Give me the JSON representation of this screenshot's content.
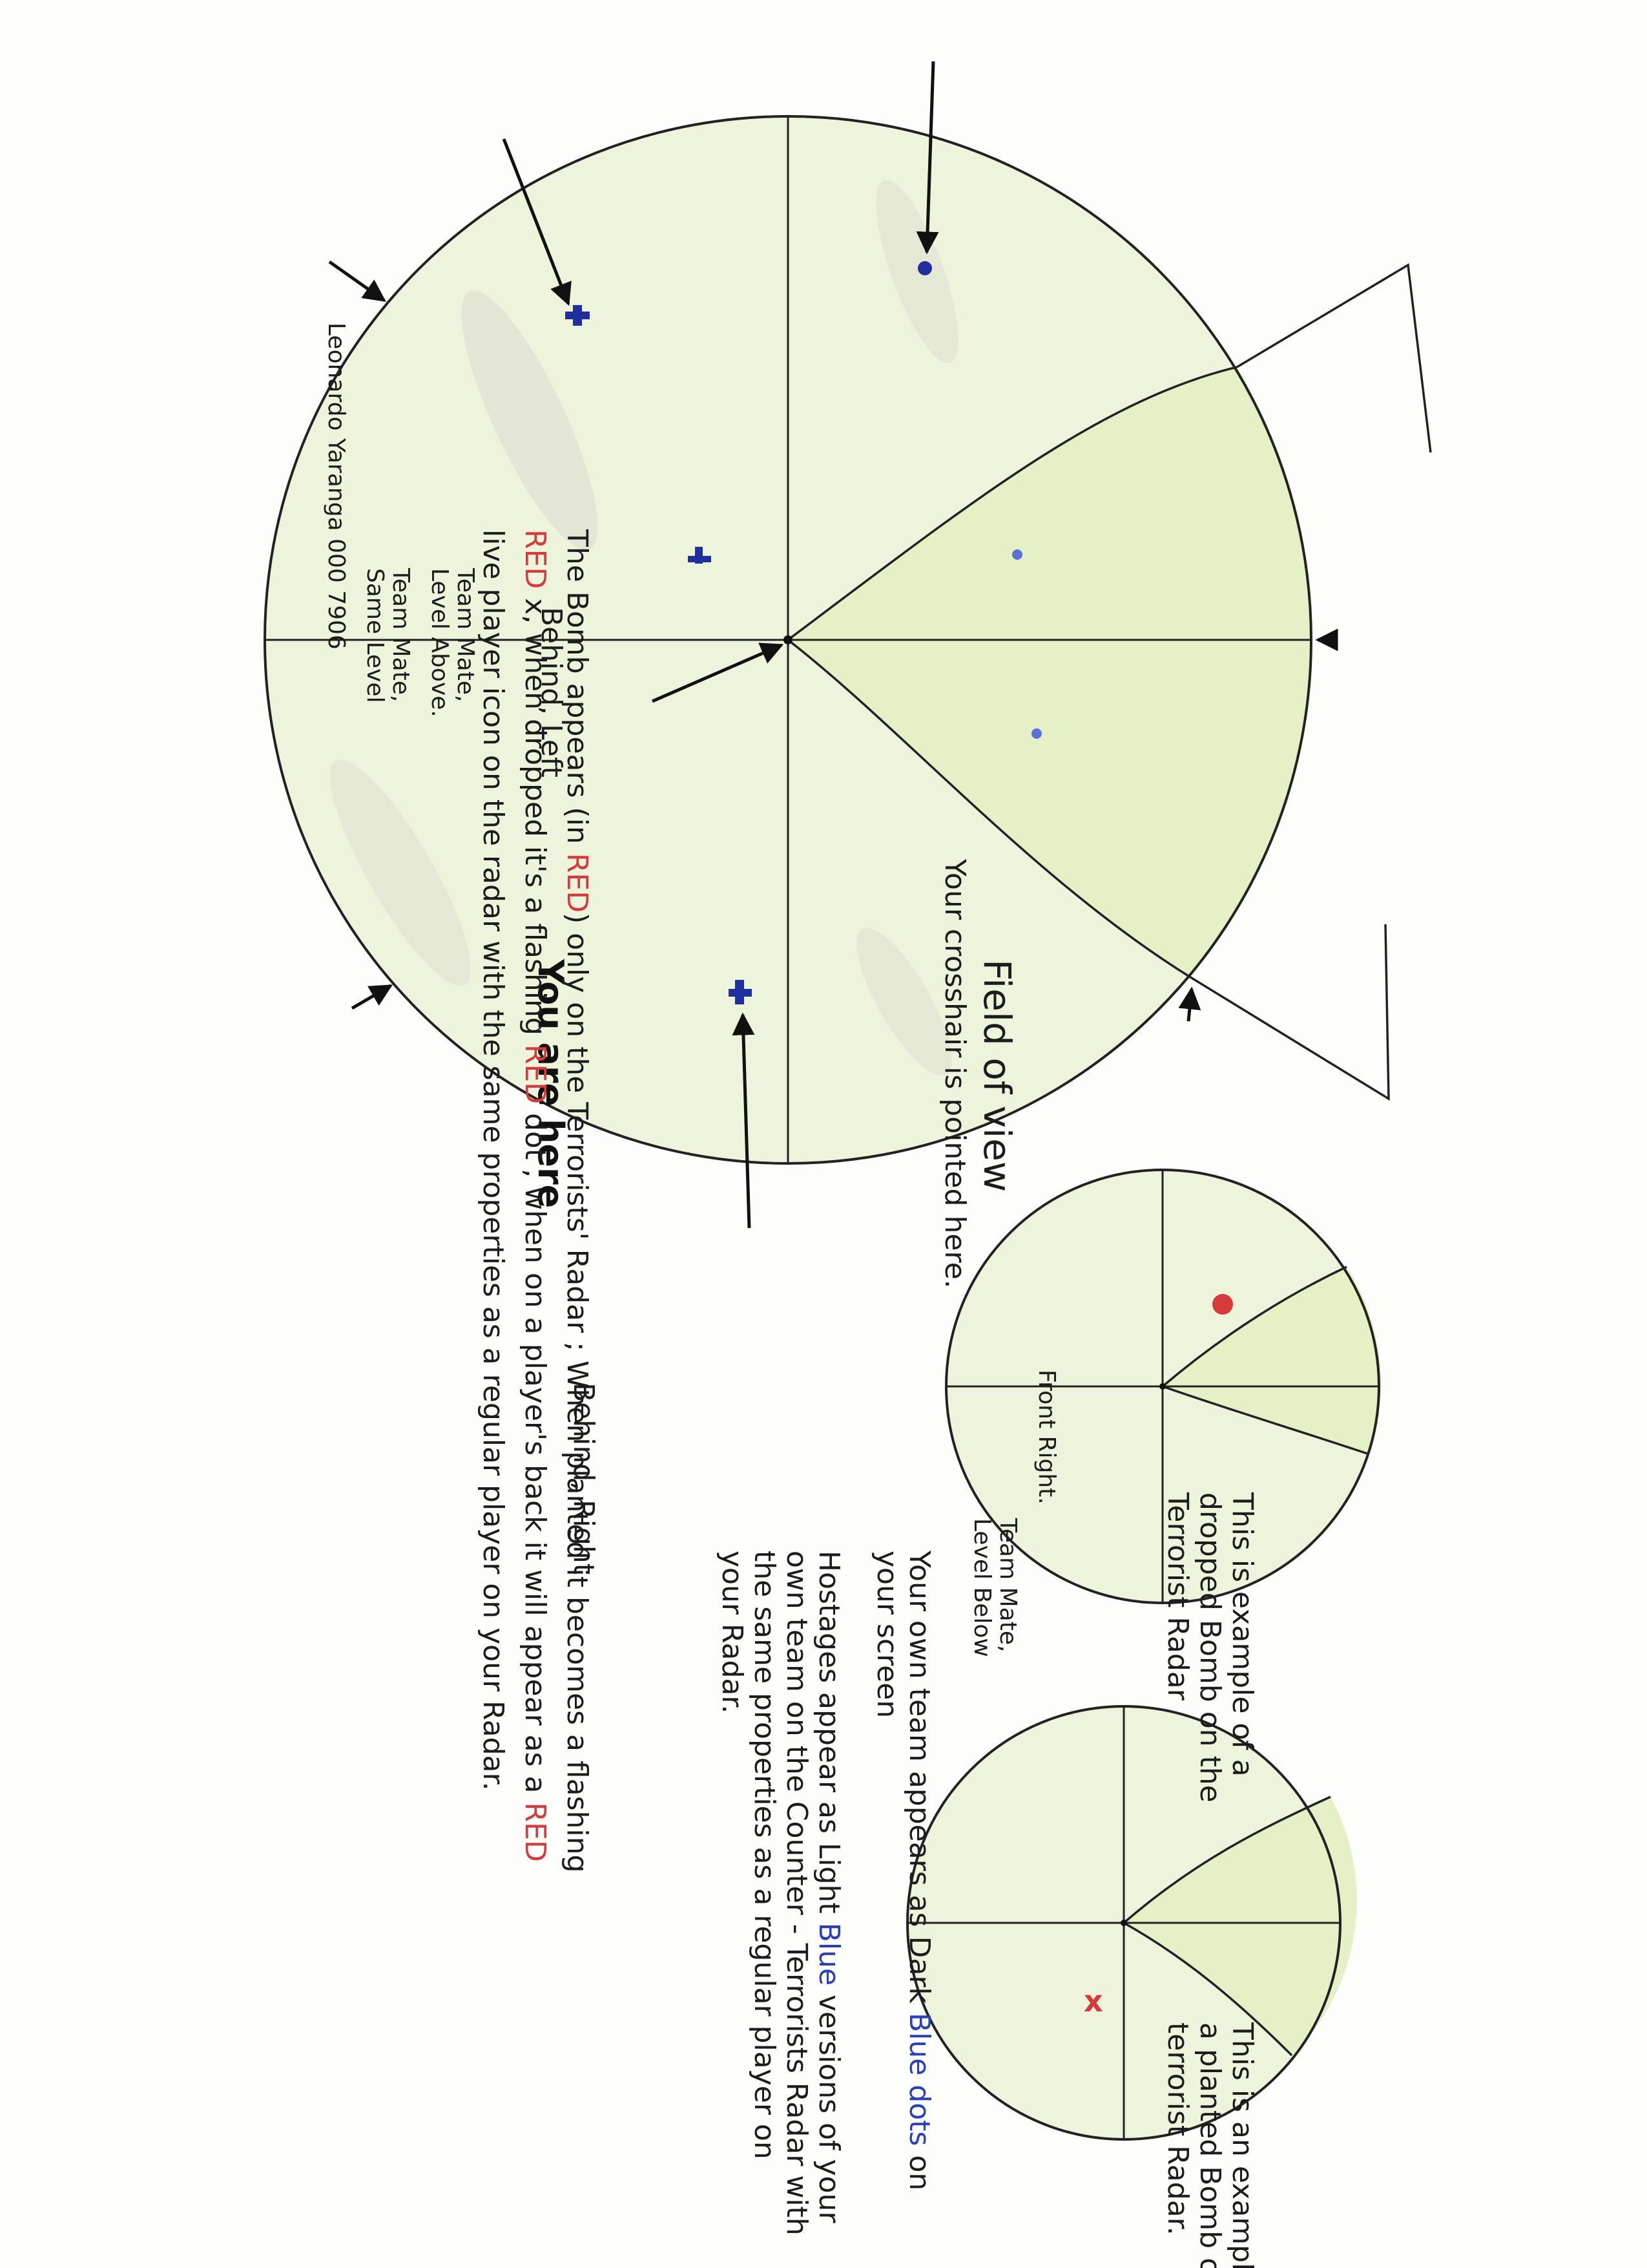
{
  "labels": {
    "field_of_view": "Field of view",
    "crosshair": "Your crosshair is pointed here.",
    "front_right": "Front Right.",
    "you_are_here": "You are here",
    "behind_left": "Behind, Left",
    "behind_right": "Behind, Right",
    "teammate_same_a": "Team Mate,",
    "teammate_same_b": "Same Level",
    "teammate_above_a": "Team Mate,",
    "teammate_above_b": "Level Above.",
    "teammate_below_a": "Team Mate,",
    "teammate_below_b": "Level Below"
  },
  "examples": {
    "dropped": [
      "This is example of a",
      "dropped Bomb on the",
      "Terrorist Radar"
    ],
    "planted": [
      "This is an example of",
      "a planted Bomb on the",
      "terrorist Radar."
    ]
  },
  "notes": {
    "team_a": "Your own team appears as Dark ",
    "team_blue": "Blue dots",
    "team_b": " on",
    "team_c": "your screen",
    "hostage_a": "Hostages appear as Light ",
    "hostage_blue": "Blue",
    "hostage_b": " versions of your",
    "hostage_c": "own team on the Counter - Terrorists Radar with",
    "hostage_d": "the same properties as a regular player on",
    "hostage_e": "your Radar."
  },
  "bomb_text": {
    "l1_a": "The Bomb appears (in ",
    "l1_red": "RED",
    "l1_b": ") only on the Terrorists' Radar ; When planted it becomes a flashing",
    "l2_red": "RED",
    "l2_a": " x, when dropped it's a flashing ",
    "l2_red2": "RED",
    "l2_b": " dot , when on a player's back it will appear as a ",
    "l2_red3": "RED",
    "l3": "live player icon on the radar with the same properties as a regular player on your Radar."
  },
  "author": "Leonardo Yaranga 000 7906",
  "markers": {
    "planted_x": "x"
  },
  "colors": {
    "radar_fill": "#eef3dc",
    "fov_fill": "#e5f0c6",
    "dark_blue": "#1f2f9e",
    "light_blue": "#5a72d8",
    "red": "#d63a3a"
  }
}
